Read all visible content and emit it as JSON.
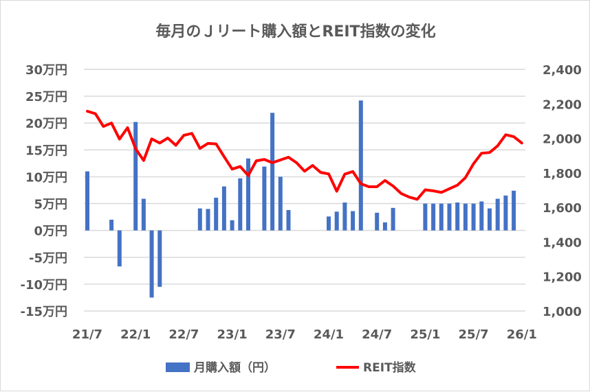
{
  "chart_data": {
    "type": "bar+line",
    "title": "毎月のＪリート購入額とREIT指数の変化",
    "categories": [
      "21/7",
      "21/8",
      "21/9",
      "21/10",
      "21/11",
      "21/12",
      "22/1",
      "22/2",
      "22/3",
      "22/4",
      "22/5",
      "22/6",
      "22/7",
      "22/8",
      "22/9",
      "22/10",
      "22/11",
      "22/12",
      "23/1",
      "23/2",
      "23/3",
      "23/4",
      "23/5",
      "23/6",
      "23/7",
      "23/8",
      "23/9",
      "23/10",
      "23/11",
      "23/12",
      "24/1",
      "24/2",
      "24/3",
      "24/4",
      "24/5",
      "24/6",
      "24/7",
      "24/8",
      "24/9",
      "24/10",
      "24/11",
      "24/12",
      "25/1",
      "25/2",
      "25/3",
      "25/4",
      "25/5",
      "25/6",
      "25/7",
      "25/8",
      "25/9",
      "25/10",
      "25/11",
      "25/12",
      "26/1"
    ],
    "x_tick_labels": [
      "21/7",
      "22/1",
      "22/7",
      "23/1",
      "23/7",
      "24/1",
      "24/7",
      "25/1",
      "25/7",
      "26/1"
    ],
    "x_tick_indices": [
      0,
      6,
      12,
      18,
      24,
      30,
      36,
      42,
      48,
      54
    ],
    "left_axis": {
      "ticks": [
        "30万円",
        "25万円",
        "20万円",
        "15万円",
        "10万円",
        "5万円",
        "0万円",
        "-5万円",
        "-10万円",
        "-15万円"
      ],
      "range": [
        -15,
        30
      ],
      "unit": "万円"
    },
    "right_axis": {
      "ticks": [
        "2,400",
        "2,200",
        "2,000",
        "1,800",
        "1,600",
        "1,400",
        "1,200",
        "1,000"
      ],
      "range": [
        1000,
        2400
      ]
    },
    "series": [
      {
        "name": "月購入額（円）",
        "type": "bar",
        "axis": "left",
        "color": "#4472C4",
        "values": [
          11.0,
          0,
          0,
          2.0,
          -6.7,
          0,
          20.2,
          5.9,
          -12.5,
          -10.5,
          0,
          0,
          0,
          0,
          4.1,
          4.0,
          6.1,
          8.2,
          1.9,
          9.7,
          13.4,
          0,
          11.9,
          21.9,
          10.0,
          3.8,
          0,
          0,
          0,
          0,
          2.6,
          3.5,
          5.2,
          3.6,
          24.2,
          0,
          3.3,
          1.5,
          4.2,
          0,
          0,
          0,
          5.0,
          5.0,
          5.0,
          5.0,
          5.2,
          5.0,
          5.0,
          5.4,
          4.1,
          5.9,
          6.5,
          7.4,
          null
        ]
      },
      {
        "name": "REIT指数",
        "type": "line",
        "axis": "right",
        "color": "#FF0000",
        "values": [
          2157,
          2143,
          2069,
          2089,
          1996,
          2062,
          1940,
          1872,
          1997,
          1973,
          2002,
          1960,
          2018,
          2029,
          1942,
          1971,
          1968,
          1894,
          1822,
          1837,
          1785,
          1870,
          1878,
          1859,
          1875,
          1891,
          1859,
          1810,
          1843,
          1803,
          1794,
          1694,
          1793,
          1808,
          1737,
          1720,
          1720,
          1756,
          1724,
          1681,
          1660,
          1647,
          1702,
          1696,
          1687,
          1708,
          1729,
          1773,
          1853,
          1914,
          1918,
          1957,
          2021,
          2010,
          1973
        ]
      }
    ],
    "grid": true,
    "legend_position": "bottom"
  }
}
